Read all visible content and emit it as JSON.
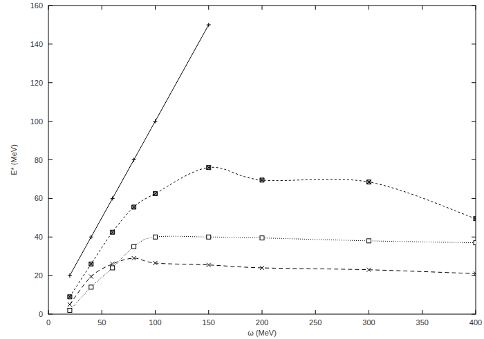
{
  "chart_data": {
    "type": "line",
    "x_label": "ω (MeV)",
    "y_label": "E* (MeV)",
    "xlim": [
      0,
      400
    ],
    "xticks": [
      0,
      50,
      100,
      150,
      200,
      250,
      300,
      350,
      400
    ],
    "ylim": [
      0,
      160
    ],
    "yticks": [
      0,
      20,
      40,
      60,
      80,
      100,
      120,
      140,
      160
    ],
    "grid": false,
    "series": [
      {
        "color": "#000000",
        "line_style": "solid",
        "marker": "plus",
        "x": [
          20,
          40,
          60,
          80,
          100,
          150
        ],
        "values": [
          20,
          40,
          60,
          80,
          100,
          150
        ]
      },
      {
        "color": "#000000",
        "line_style": "dashed",
        "marker": "asterisk",
        "x": [
          20,
          40,
          60,
          80,
          100,
          150,
          200,
          300,
          400
        ],
        "values": [
          9,
          26,
          42.5,
          55.5,
          62.5,
          76,
          69.5,
          68.5,
          49.5
        ]
      },
      {
        "color": "#000000",
        "line_style": "dotted",
        "marker": "square",
        "x": [
          20,
          40,
          60,
          80,
          100,
          150,
          200,
          300,
          400
        ],
        "values": [
          2,
          14,
          24,
          35,
          40,
          40,
          39.5,
          38,
          37
        ]
      },
      {
        "color": "#000000",
        "line_style": "long-dashed",
        "marker": "cross",
        "x": [
          20,
          40,
          60,
          80,
          100,
          150,
          200,
          300,
          400
        ],
        "values": [
          5,
          19.5,
          26,
          29,
          26.5,
          25.5,
          24,
          23,
          21
        ]
      }
    ]
  }
}
